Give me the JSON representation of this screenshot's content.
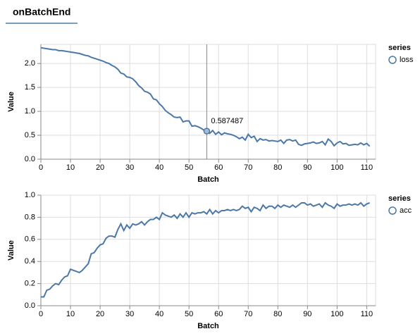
{
  "tab": "onBatchEnd",
  "chart_data": [
    {
      "type": "line",
      "xlabel": "Batch",
      "ylabel": "Value",
      "legend_title": "series",
      "grid": true,
      "hover_index": 56,
      "x": [
        0,
        1,
        2,
        3,
        4,
        5,
        6,
        7,
        8,
        9,
        10,
        11,
        12,
        13,
        14,
        15,
        16,
        17,
        18,
        19,
        20,
        21,
        22,
        23,
        24,
        25,
        26,
        27,
        28,
        29,
        30,
        31,
        32,
        33,
        34,
        35,
        36,
        37,
        38,
        39,
        40,
        41,
        42,
        43,
        44,
        45,
        46,
        47,
        48,
        49,
        50,
        51,
        52,
        53,
        54,
        55,
        56,
        57,
        58,
        59,
        60,
        61,
        62,
        63,
        64,
        65,
        66,
        67,
        68,
        69,
        70,
        71,
        72,
        73,
        74,
        75,
        76,
        77,
        78,
        79,
        80,
        81,
        82,
        83,
        84,
        85,
        86,
        87,
        88,
        89,
        90,
        91,
        92,
        93,
        94,
        95,
        96,
        97,
        98,
        99,
        100,
        101,
        102,
        103,
        104,
        105,
        106,
        107,
        108,
        109,
        110,
        111
      ],
      "series": [
        {
          "name": "loss",
          "color": "#4c78a8",
          "values": [
            2.33,
            2.32,
            2.31,
            2.3,
            2.29,
            2.29,
            2.27,
            2.27,
            2.26,
            2.25,
            2.24,
            2.23,
            2.22,
            2.21,
            2.19,
            2.17,
            2.16,
            2.13,
            2.11,
            2.09,
            2.07,
            2.05,
            2.02,
            2.0,
            1.96,
            1.93,
            1.88,
            1.8,
            1.78,
            1.72,
            1.71,
            1.68,
            1.62,
            1.54,
            1.49,
            1.42,
            1.4,
            1.36,
            1.26,
            1.24,
            1.16,
            1.1,
            1.02,
            0.97,
            0.93,
            0.88,
            0.87,
            0.88,
            0.78,
            0.8,
            0.8,
            0.69,
            0.7,
            0.68,
            0.65,
            0.61,
            0.587487,
            0.54,
            0.6,
            0.52,
            0.57,
            0.51,
            0.55,
            0.53,
            0.52,
            0.5,
            0.47,
            0.43,
            0.46,
            0.4,
            0.52,
            0.45,
            0.48,
            0.37,
            0.43,
            0.4,
            0.41,
            0.38,
            0.39,
            0.38,
            0.37,
            0.4,
            0.33,
            0.4,
            0.41,
            0.38,
            0.4,
            0.31,
            0.29,
            0.32,
            0.33,
            0.34,
            0.36,
            0.33,
            0.34,
            0.37,
            0.3,
            0.42,
            0.37,
            0.28,
            0.34,
            0.37,
            0.32,
            0.33,
            0.29,
            0.3,
            0.31,
            0.3,
            0.34,
            0.3,
            0.33,
            0.27
          ]
        }
      ],
      "xlim": [
        0,
        113
      ],
      "xticks": [
        0,
        10,
        20,
        30,
        40,
        50,
        60,
        70,
        80,
        90,
        100,
        110
      ],
      "ylim": [
        0,
        2.4
      ],
      "yticks": [
        {
          "value": 0,
          "label": "0.0"
        },
        0.5,
        {
          "value": 1,
          "label": "1.0"
        },
        1.5,
        {
          "value": 2,
          "label": "2.0"
        }
      ]
    },
    {
      "type": "line",
      "xlabel": "Batch",
      "ylabel": "Value",
      "legend_title": "series",
      "grid": true,
      "x": [
        0,
        1,
        2,
        3,
        4,
        5,
        6,
        7,
        8,
        9,
        10,
        11,
        12,
        13,
        14,
        15,
        16,
        17,
        18,
        19,
        20,
        21,
        22,
        23,
        24,
        25,
        26,
        27,
        28,
        29,
        30,
        31,
        32,
        33,
        34,
        35,
        36,
        37,
        38,
        39,
        40,
        41,
        42,
        43,
        44,
        45,
        46,
        47,
        48,
        49,
        50,
        51,
        52,
        53,
        54,
        55,
        56,
        57,
        58,
        59,
        60,
        61,
        62,
        63,
        64,
        65,
        66,
        67,
        68,
        69,
        70,
        71,
        72,
        73,
        74,
        75,
        76,
        77,
        78,
        79,
        80,
        81,
        82,
        83,
        84,
        85,
        86,
        87,
        88,
        89,
        90,
        91,
        92,
        93,
        94,
        95,
        96,
        97,
        98,
        99,
        100,
        101,
        102,
        103,
        104,
        105,
        106,
        107,
        108,
        109,
        110,
        111
      ],
      "series": [
        {
          "name": "acc",
          "color": "#4c78a8",
          "values": [
            0.08,
            0.08,
            0.14,
            0.15,
            0.18,
            0.2,
            0.19,
            0.23,
            0.26,
            0.27,
            0.33,
            0.32,
            0.31,
            0.3,
            0.32,
            0.35,
            0.38,
            0.47,
            0.48,
            0.52,
            0.55,
            0.56,
            0.61,
            0.63,
            0.63,
            0.62,
            0.69,
            0.74,
            0.68,
            0.73,
            0.7,
            0.74,
            0.73,
            0.74,
            0.76,
            0.73,
            0.76,
            0.78,
            0.78,
            0.8,
            0.78,
            0.84,
            0.82,
            0.81,
            0.8,
            0.82,
            0.79,
            0.83,
            0.8,
            0.84,
            0.8,
            0.84,
            0.83,
            0.84,
            0.84,
            0.85,
            0.83,
            0.87,
            0.83,
            0.86,
            0.84,
            0.86,
            0.86,
            0.87,
            0.86,
            0.87,
            0.86,
            0.87,
            0.9,
            0.88,
            0.89,
            0.85,
            0.89,
            0.88,
            0.86,
            0.91,
            0.88,
            0.9,
            0.9,
            0.88,
            0.91,
            0.89,
            0.91,
            0.9,
            0.89,
            0.91,
            0.89,
            0.91,
            0.93,
            0.93,
            0.91,
            0.92,
            0.9,
            0.91,
            0.92,
            0.89,
            0.93,
            0.91,
            0.9,
            0.88,
            0.92,
            0.9,
            0.91,
            0.91,
            0.92,
            0.91,
            0.92,
            0.91,
            0.93,
            0.9,
            0.92,
            0.93
          ]
        }
      ],
      "xlim": [
        0,
        113
      ],
      "xticks": [
        0,
        10,
        20,
        30,
        40,
        50,
        60,
        70,
        80,
        90,
        100,
        110
      ],
      "ylim": [
        0,
        1
      ],
      "yticks": [
        {
          "value": 0,
          "label": "0.0"
        },
        0.2,
        0.4,
        0.6,
        0.8,
        {
          "value": 1,
          "label": "1.0"
        }
      ]
    }
  ]
}
